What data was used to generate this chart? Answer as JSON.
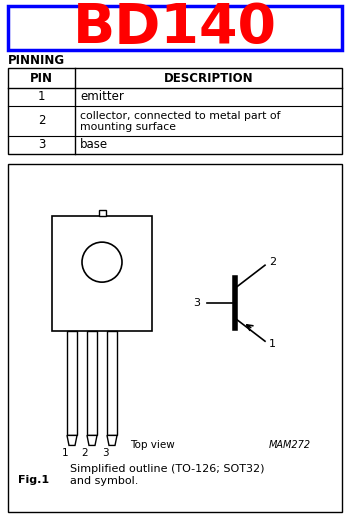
{
  "title": "BD140",
  "title_color": "#FF0000",
  "title_box_color": "#0000FF",
  "bg_color": "#FFFFFF",
  "pinning_label": "PINNING",
  "table_headers": [
    "PIN",
    "DESCRIPTION"
  ],
  "table_rows": [
    [
      "1",
      "emitter"
    ],
    [
      "2",
      "collector, connected to metal part of\nmounting surface"
    ],
    [
      "3",
      "base"
    ]
  ],
  "fig_label": "Fig.1",
  "fig_caption": "Simplified outline (TO-126; SOT32)\nand symbol.",
  "top_view_label": "Top view",
  "part_label": "MAM272"
}
